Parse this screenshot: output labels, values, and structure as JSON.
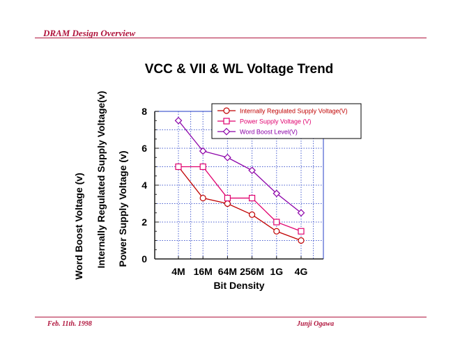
{
  "header": {
    "title": "DRAM Design Overview"
  },
  "footer": {
    "date": "Feb.  11th. 1998",
    "author": "Junji  Ogawa"
  },
  "chart_data": {
    "type": "line",
    "title": "VCC & VII & WL Voltage Trend",
    "xlabel": "Bit Density",
    "ylabels": [
      "Word Boost Voltage (v)",
      "Internally Regulated Supply Voltage(v)",
      "Power Supply Voltage (v)"
    ],
    "categories": [
      "4M",
      "16M",
      "64M",
      "256M",
      "1G",
      "4G"
    ],
    "ylim": [
      0,
      8
    ],
    "yticks": [
      0,
      2,
      4,
      6,
      8
    ],
    "grid": true,
    "legend_position": "top-right",
    "series": [
      {
        "name": "Internally Regulated Supply Voltage(V)",
        "marker": "circle",
        "color": "#c00000",
        "values": [
          5,
          3.3,
          3,
          2.4,
          1.5,
          1
        ]
      },
      {
        "name": "Power Supply Voltage (V)",
        "marker": "square",
        "color": "#e0006e",
        "values": [
          5,
          5,
          3.3,
          3.3,
          2,
          1.5
        ]
      },
      {
        "name": "Word Boost Level(V)",
        "marker": "diamond",
        "color": "#8b00a8",
        "values": [
          7.5,
          5.85,
          5.5,
          4.8,
          3.55,
          2.5
        ]
      }
    ],
    "colors": {
      "grid": "#4a5fd0",
      "frame": "#1a1a1a",
      "accent": "#b0143c"
    }
  }
}
